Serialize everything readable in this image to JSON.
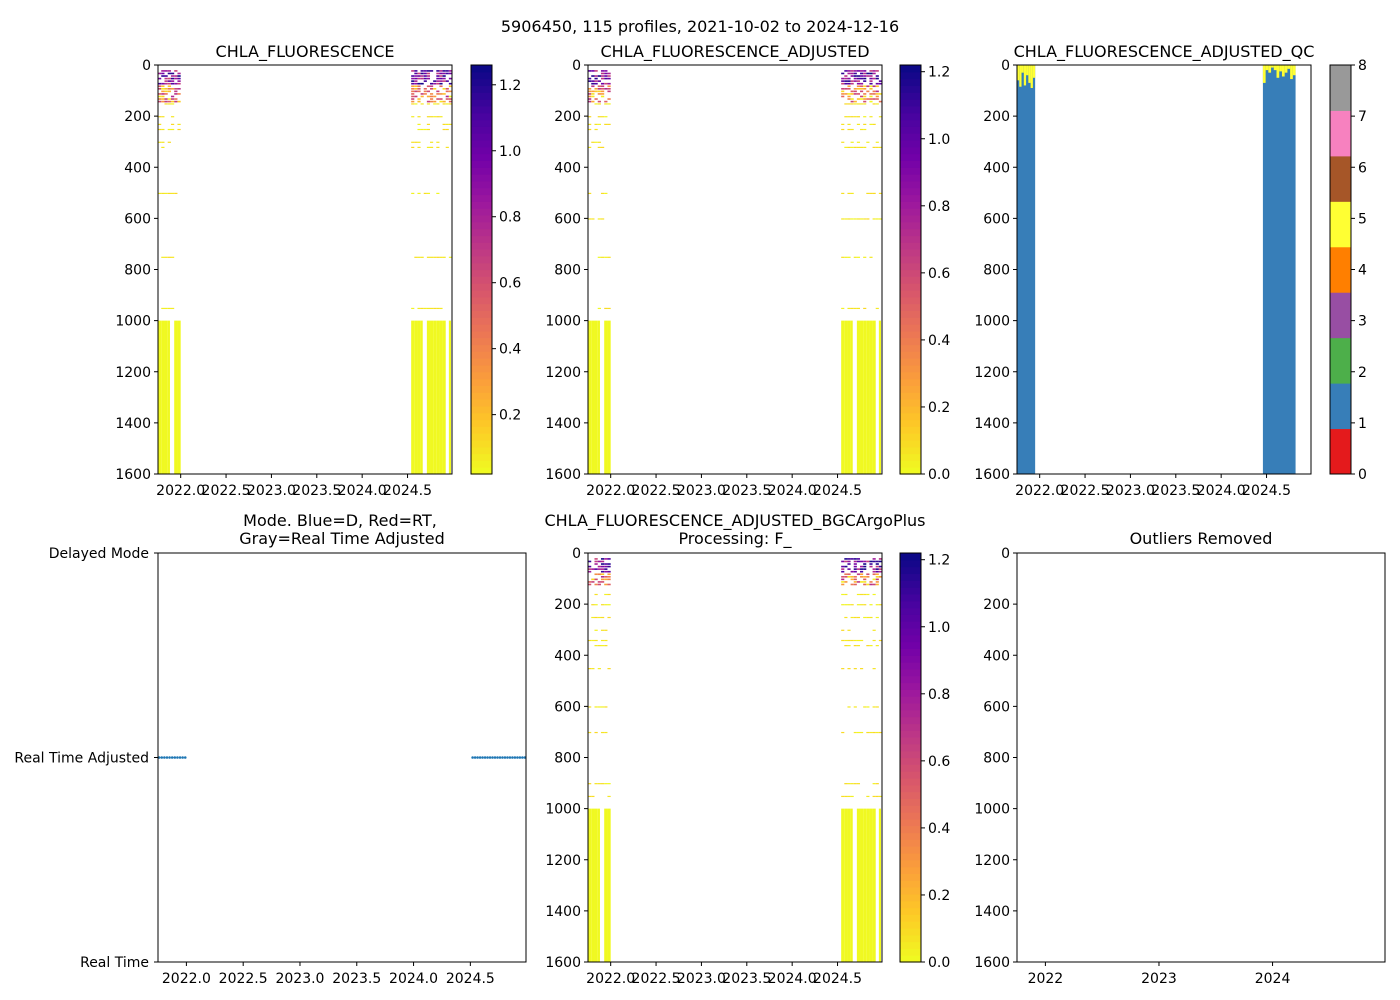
{
  "figure_title": "5906450, 115 profiles, 2021-10-02 to 2024-12-16",
  "colors": {
    "plasma_r": [
      "#f0f921",
      "#fdca26",
      "#fb9f3a",
      "#ed7953",
      "#d8576b",
      "#bd3786",
      "#9c179e",
      "#7201a8",
      "#46039f",
      "#0d0887"
    ],
    "qc": [
      "#e41a1c",
      "#377eb8",
      "#4daf4a",
      "#984ea3",
      "#ff7f00",
      "#ffff33",
      "#a65628",
      "#f781bf",
      "#999999"
    ],
    "mode_points": "#1f77b4",
    "axes": "#000000",
    "background": "#ffffff"
  },
  "chart_data": [
    {
      "id": "chla",
      "type": "heatmap",
      "title": "CHLA_FLUORESCENCE",
      "xticks": [
        "2022.0",
        "2022.5",
        "2023.0",
        "2023.5",
        "2024.0",
        "2024.5"
      ],
      "xtick_values": [
        2022.0,
        2022.5,
        2023.0,
        2023.5,
        2024.0,
        2024.5
      ],
      "xlim": [
        2021.75,
        2024.99
      ],
      "ylim": [
        1600,
        0
      ],
      "yticks": [
        "0",
        "200",
        "400",
        "600",
        "800",
        "1000",
        "1200",
        "1400",
        "1600"
      ],
      "colorbar": {
        "range": [
          0.02,
          1.26
        ],
        "ticks": [
          "0.2",
          "0.4",
          "0.6",
          "0.8",
          "1.0",
          "1.2"
        ],
        "tick_values": [
          0.2,
          0.4,
          0.6,
          0.8,
          1.0,
          1.2
        ]
      },
      "data_periods": [
        [
          2021.75,
          2022.0
        ],
        [
          2024.54,
          2024.99
        ]
      ],
      "high_value_depth_range": [
        20,
        140
      ],
      "sampled_depths": [
        150,
        200,
        230,
        250,
        300,
        320,
        500,
        750,
        950
      ],
      "deep_block": {
        "from_depth": 1000,
        "to_depth": 1600,
        "value": 0.02
      }
    },
    {
      "id": "chla_adj",
      "type": "heatmap",
      "title": "CHLA_FLUORESCENCE_ADJUSTED",
      "xticks": [
        "2022.0",
        "2022.5",
        "2023.0",
        "2023.5",
        "2024.0",
        "2024.5"
      ],
      "xtick_values": [
        2022.0,
        2022.5,
        2023.0,
        2023.5,
        2024.0,
        2024.5
      ],
      "xlim": [
        2021.75,
        2024.99
      ],
      "ylim": [
        1600,
        0
      ],
      "yticks": [
        "0",
        "200",
        "400",
        "600",
        "800",
        "1000",
        "1200",
        "1400",
        "1600"
      ],
      "colorbar": {
        "range": [
          0.0,
          1.22
        ],
        "ticks": [
          "0.0",
          "0.2",
          "0.4",
          "0.6",
          "0.8",
          "1.0",
          "1.2"
        ],
        "tick_values": [
          0.0,
          0.2,
          0.4,
          0.6,
          0.8,
          1.0,
          1.2
        ]
      },
      "data_periods": [
        [
          2021.75,
          2022.0
        ],
        [
          2024.54,
          2024.99
        ]
      ],
      "high_value_depth_range": [
        20,
        140
      ],
      "sampled_depths": [
        150,
        200,
        230,
        250,
        300,
        320,
        500,
        600,
        750,
        950
      ],
      "deep_block": {
        "from_depth": 1000,
        "to_depth": 1600,
        "value": 0.0
      }
    },
    {
      "id": "chla_qc",
      "type": "heatmap",
      "title": "CHLA_FLUORESCENCE_ADJUSTED_QC",
      "xticks": [
        "2022.0",
        "2022.5",
        "2023.0",
        "2023.5",
        "2024.0",
        "2024.5"
      ],
      "xtick_values": [
        2022.0,
        2022.5,
        2023.0,
        2023.5,
        2024.0,
        2024.5
      ],
      "xlim": [
        2021.75,
        2024.99
      ],
      "ylim": [
        1600,
        0
      ],
      "yticks": [
        "0",
        "200",
        "400",
        "600",
        "800",
        "1000",
        "1200",
        "1400",
        "1600"
      ],
      "colorbar": {
        "range": [
          0,
          8
        ],
        "ticks": [
          "0",
          "1",
          "2",
          "3",
          "4",
          "5",
          "6",
          "7",
          "8"
        ],
        "tick_values": [
          0,
          1,
          2,
          3,
          4,
          5,
          6,
          7,
          8
        ]
      },
      "qc_blocks": [
        {
          "x": [
            2021.75,
            2021.95
          ],
          "depth": [
            0,
            1600
          ],
          "qc": 1
        },
        {
          "x": [
            2024.46,
            2024.82
          ],
          "depth": [
            0,
            1600
          ],
          "qc": 1
        }
      ],
      "qc_top_strips": [
        {
          "x": [
            2021.75,
            2021.95
          ],
          "depth_max": [
            60,
            85,
            30,
            80,
            40,
            70,
            90,
            50
          ],
          "qc": 5
        },
        {
          "x": [
            2024.46,
            2024.82
          ],
          "depth_max": [
            70,
            20,
            30,
            10,
            20,
            50,
            25,
            45,
            30,
            15,
            55,
            40
          ],
          "qc": 5
        }
      ]
    },
    {
      "id": "mode",
      "type": "scatter",
      "title": "Mode. Blue=D, Red=RT,",
      "title_line2": "Gray=Real Time Adjusted",
      "xticks": [
        "2022.0",
        "2022.5",
        "2023.0",
        "2023.5",
        "2024.0",
        "2024.5"
      ],
      "xtick_values": [
        2022.0,
        2022.5,
        2023.0,
        2023.5,
        2024.0,
        2024.5
      ],
      "xlim": [
        2021.75,
        2024.99
      ],
      "ylim": [
        0,
        2
      ],
      "yticks": [
        "Real Time",
        "Real Time Adjusted",
        "Delayed Mode"
      ],
      "ytick_values": [
        0,
        1,
        2
      ],
      "points": [
        {
          "x_range": [
            2021.76,
            2021.99
          ],
          "count": 11,
          "y": 1
        },
        {
          "x_range": [
            2024.52,
            2024.98
          ],
          "count": 22,
          "y": 1
        }
      ]
    },
    {
      "id": "bgcargo",
      "type": "heatmap",
      "title": "CHLA_FLUORESCENCE_ADJUSTED_BGCArgoPlus",
      "title_line2": "Processing: F_",
      "xticks": [
        "2022.0",
        "2022.5",
        "2023.0",
        "2023.5",
        "2024.0",
        "2024.5"
      ],
      "xtick_values": [
        2022.0,
        2022.5,
        2023.0,
        2023.5,
        2024.0,
        2024.5
      ],
      "xlim": [
        2021.75,
        2024.99
      ],
      "ylim": [
        1600,
        0
      ],
      "yticks": [
        "0",
        "200",
        "400",
        "600",
        "800",
        "1000",
        "1200",
        "1400",
        "1600"
      ],
      "colorbar": {
        "range": [
          0.0,
          1.22
        ],
        "ticks": [
          "0.0",
          "0.2",
          "0.4",
          "0.6",
          "0.8",
          "1.0",
          "1.2"
        ],
        "tick_values": [
          0.0,
          0.2,
          0.4,
          0.6,
          0.8,
          1.0,
          1.2
        ]
      },
      "data_periods": [
        [
          2021.75,
          2022.0
        ],
        [
          2024.54,
          2024.99
        ]
      ],
      "high_value_depth_range": [
        20,
        120
      ],
      "sampled_depths": [
        160,
        200,
        250,
        300,
        340,
        360,
        450,
        600,
        700,
        900,
        950
      ],
      "deep_block": {
        "from_depth": 1000,
        "to_depth": 1600,
        "value": 0.0
      }
    },
    {
      "id": "outliers",
      "type": "scatter",
      "title": "Outliers Removed",
      "xticks": [
        "2022",
        "2023",
        "2024"
      ],
      "xtick_values": [
        2022,
        2023,
        2024
      ],
      "xlim": [
        2021.75,
        2024.99
      ],
      "ylim": [
        1600,
        0
      ],
      "yticks": [
        "0",
        "200",
        "400",
        "600",
        "800",
        "1000",
        "1200",
        "1400",
        "1600"
      ],
      "points": []
    }
  ]
}
